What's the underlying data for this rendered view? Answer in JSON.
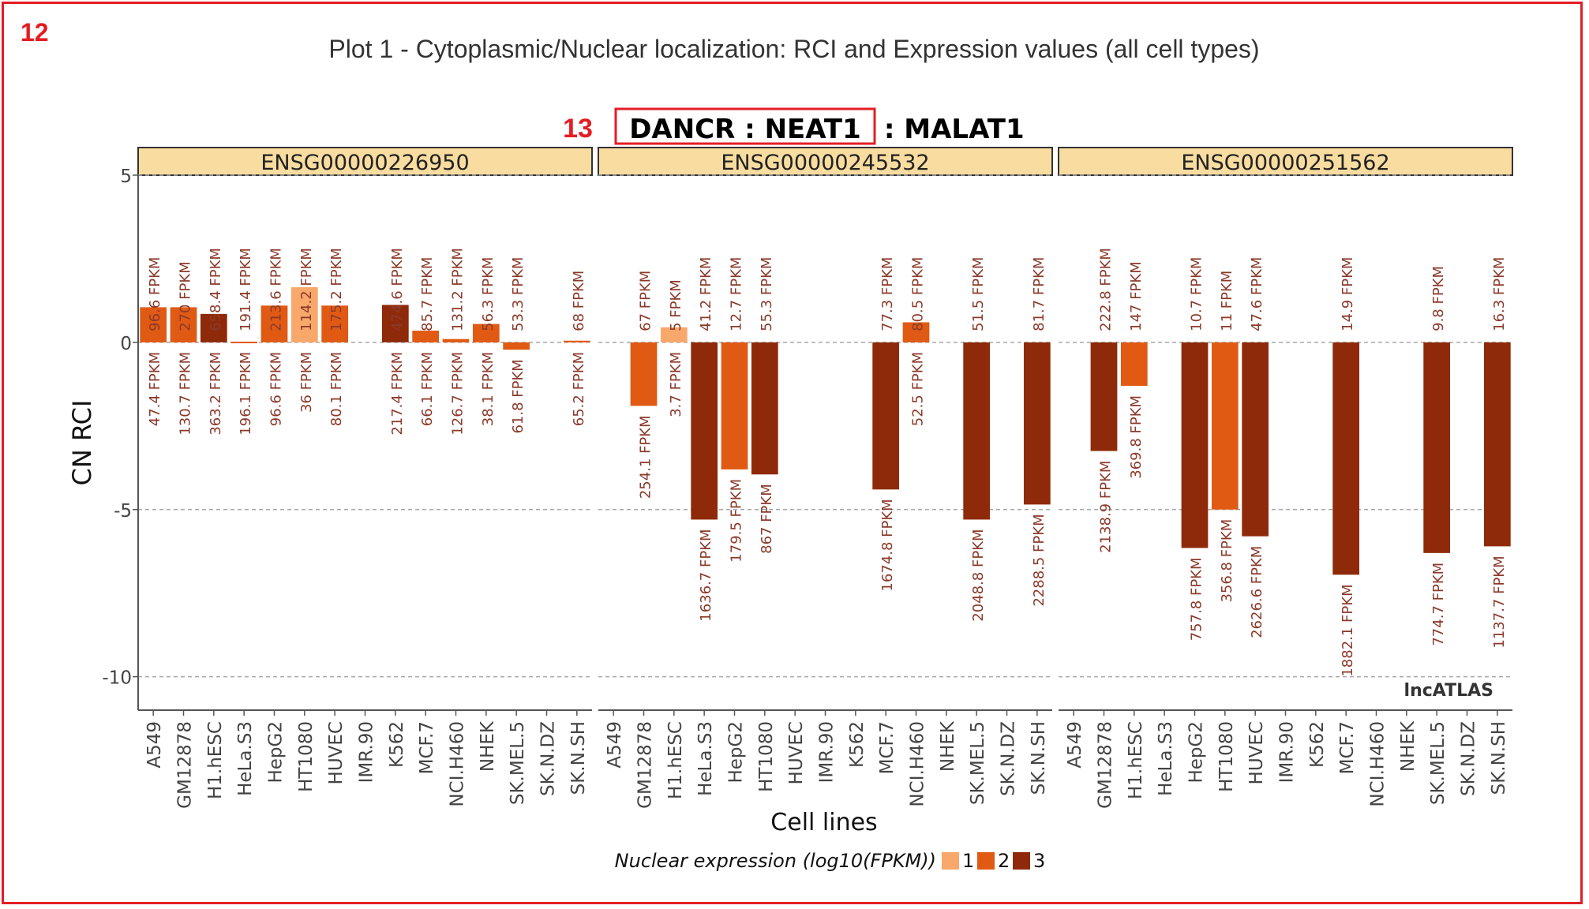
{
  "annotations": {
    "outer_marker": "12",
    "inner_marker": "13"
  },
  "plot_title": "Plot 1 - Cytoplasmic/Nuclear localization: RCI and Expression values (all cell types)",
  "gene_title": {
    "boxed": "DANCR : NEAT1",
    "rest": " : MALAT1"
  },
  "watermark": "lncATLAS",
  "colors": {
    "level1": "#f9a86b",
    "level2": "#e05a14",
    "level3": "#8e2a0a",
    "strip": "#f8dca0",
    "label": "#8b3a2a",
    "annot": "#e31e24"
  },
  "chart_data": {
    "type": "bar",
    "ylabel": "CN RCI",
    "xlabel": "Cell lines",
    "ylim": [
      -11,
      5
    ],
    "yticks": [
      5,
      0,
      -5,
      -10
    ],
    "grid": true,
    "legend": {
      "title": "Nuclear expression (log10(FPKM))",
      "items": [
        "1",
        "2",
        "3"
      ],
      "placement": "bottom"
    },
    "categories": [
      "A549",
      "GM12878",
      "H1.hESC",
      "HeLa.S3",
      "HepG2",
      "HT1080",
      "HUVEC",
      "IMR.90",
      "K562",
      "MCF.7",
      "NCI.H460",
      "NHEK",
      "SK.MEL.5",
      "SK.N.DZ",
      "SK.N.SH"
    ],
    "panels": [
      {
        "name": "ENSG00000226950",
        "values": [
          1.05,
          1.05,
          0.85,
          0.02,
          1.1,
          1.65,
          1.1,
          null,
          1.12,
          0.35,
          0.1,
          0.55,
          -0.22,
          null,
          0.05
        ],
        "level": [
          2,
          2,
          3,
          2,
          2,
          1,
          2,
          null,
          3,
          2,
          2,
          2,
          2,
          null,
          2
        ],
        "top_labels": [
          "96.6 FPKM",
          "270 FPKM",
          "658.4 FPKM",
          "191.4 FPKM",
          "213.6 FPKM",
          "114.2 FPKM",
          "175.2 FPKM",
          "",
          "474.6 FPKM",
          "85.7 FPKM",
          "131.2 FPKM",
          "56.3 FPKM",
          "53.3 FPKM",
          "",
          "68 FPKM"
        ],
        "bottom_labels": [
          "47.4 FPKM",
          "130.7 FPKM",
          "363.2 FPKM",
          "196.1 FPKM",
          "96.6 FPKM",
          "36 FPKM",
          "80.1 FPKM",
          "",
          "217.4 FPKM",
          "66.1 FPKM",
          "126.7 FPKM",
          "38.1 FPKM",
          "61.8 FPKM",
          "",
          "65.2 FPKM"
        ]
      },
      {
        "name": "ENSG00000245532",
        "values": [
          null,
          -1.9,
          0.45,
          -5.3,
          -3.8,
          -3.95,
          null,
          null,
          null,
          -4.4,
          0.6,
          null,
          -5.3,
          null,
          -4.85
        ],
        "level": [
          null,
          2,
          1,
          3,
          2,
          3,
          null,
          null,
          null,
          3,
          2,
          null,
          3,
          null,
          3
        ],
        "top_labels": [
          "",
          "67 FPKM",
          "5 FPKM",
          "41.2 FPKM",
          "12.7 FPKM",
          "55.3 FPKM",
          "",
          "",
          "",
          "77.3 FPKM",
          "80.5 FPKM",
          "",
          "51.5 FPKM",
          "",
          "81.7 FPKM"
        ],
        "bottom_labels": [
          "",
          "254.1 FPKM",
          "3.7 FPKM",
          "1636.7 FPKM",
          "179.5 FPKM",
          "867 FPKM",
          "",
          "",
          "",
          "1674.8 FPKM",
          "52.5 FPKM",
          "",
          "2048.8 FPKM",
          "",
          "2288.5 FPKM"
        ]
      },
      {
        "name": "ENSG00000251562",
        "values": [
          null,
          -3.25,
          -1.3,
          null,
          -6.15,
          -5.0,
          -5.8,
          null,
          null,
          -6.95,
          null,
          null,
          -6.3,
          null,
          -6.1
        ],
        "level": [
          null,
          3,
          2,
          null,
          3,
          2,
          3,
          null,
          null,
          3,
          null,
          null,
          3,
          null,
          3
        ],
        "top_labels": [
          "",
          "222.8 FPKM",
          "147 FPKM",
          "",
          "10.7 FPKM",
          "11 FPKM",
          "47.6 FPKM",
          "",
          "",
          "14.9 FPKM",
          "",
          "",
          "9.8 FPKM",
          "",
          "16.3 FPKM"
        ],
        "bottom_labels": [
          "",
          "2138.9 FPKM",
          "369.8 FPKM",
          "",
          "757.8 FPKM",
          "356.8 FPKM",
          "2626.6 FPKM",
          "",
          "",
          "1882.1 FPKM",
          "",
          "",
          "774.7 FPKM",
          "",
          "1137.7 FPKM"
        ]
      }
    ]
  }
}
